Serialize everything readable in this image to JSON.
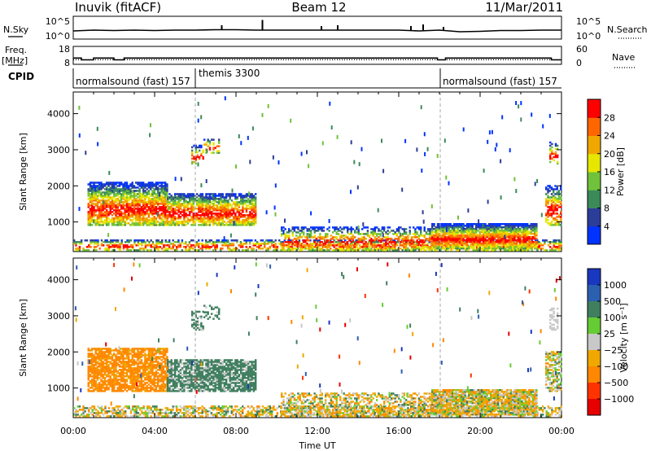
{
  "header": {
    "station": "Inuvik (fitACF)",
    "beam": "Beam 12",
    "date": "11/Mar/2011"
  },
  "chart_data": [
    {
      "type": "line",
      "name": "noise-panel",
      "left_label": "N.Sky",
      "right_label": "N.Search",
      "left_ticks": [
        "10^5",
        "10^0"
      ],
      "right_ticks": [
        "10^5",
        "10^0"
      ],
      "ylim": [
        0,
        5
      ],
      "x": [
        0,
        1,
        2,
        3,
        4,
        5,
        6,
        7,
        8,
        9,
        10,
        11,
        12,
        13,
        14,
        15,
        16,
        17,
        18,
        19,
        20,
        21,
        22,
        23,
        24
      ],
      "series": [
        {
          "values": [
            1.8,
            2.0,
            1.9,
            2.0,
            1.9,
            2.0,
            2.0,
            2.1,
            2.1,
            2.0,
            2.0,
            2.0,
            2.0,
            2.0,
            2.0,
            2.0,
            2.0,
            1.8,
            2.0,
            1.6,
            1.7,
            1.9,
            1.9,
            2.0,
            2.0
          ]
        }
      ],
      "spikes": [
        [
          7.3,
          3.2
        ],
        [
          9.3,
          4.5
        ],
        [
          12.2,
          3.0
        ],
        [
          13.0,
          3.2
        ],
        [
          16.6,
          3.0
        ],
        [
          17.2,
          3.4
        ],
        [
          18.2,
          2.8
        ]
      ]
    },
    {
      "type": "line",
      "name": "frequency-panel",
      "left_label": "Freq.",
      "left_unit": "[MHz]",
      "right_label": "Nave",
      "left_ticks": [
        "18",
        "8"
      ],
      "right_ticks": [
        "60",
        "0"
      ],
      "freq_step_x": [
        0,
        0.4,
        0.4,
        1.0,
        1.0,
        2.0,
        2.0,
        2.5,
        2.5,
        6.0,
        6.0,
        17.9,
        17.9,
        18.3,
        18.3,
        23.5,
        23.5,
        24
      ],
      "freq_step_y": [
        11.5,
        11.5,
        10.5,
        10.5,
        11.5,
        11.5,
        10.5,
        10.5,
        11.5,
        11.5,
        11.5,
        11.5,
        10.5,
        10.5,
        11.5,
        11.5,
        10.5,
        10.5
      ],
      "nave_x": [
        0,
        24
      ],
      "nave_y": [
        8,
        8
      ],
      "ylim": [
        8,
        18
      ]
    },
    {
      "type": "table",
      "name": "cpid-strip",
      "label": "CPID",
      "segments": [
        {
          "start": 0,
          "end": 6,
          "text": "normalsound (fast) 157"
        },
        {
          "start": 6,
          "end": 18,
          "text": "themis 3300"
        },
        {
          "start": 18,
          "end": 24,
          "text": "normalsound (fast) 157"
        }
      ]
    },
    {
      "type": "heatmap",
      "name": "power-panel",
      "ylabel": "Slant Range [km]",
      "colorbar_label": "Power [dB]",
      "colorbar_ticks": [
        "4",
        "8",
        "12",
        "16",
        "20",
        "24",
        "28"
      ],
      "colorbar_colors": [
        "#0033ff",
        "#2c3d99",
        "#3b8a5a",
        "#70c23a",
        "#e6e600",
        "#f0a800",
        "#ff6600",
        "#ff0000"
      ],
      "yticks": [
        "1000",
        "2000",
        "3000",
        "4000"
      ],
      "ylim": [
        180,
        4600
      ],
      "xlim": [
        0,
        24
      ]
    },
    {
      "type": "heatmap",
      "name": "velocity-panel",
      "ylabel": "Slant Range [km]",
      "colorbar_label": "Velocity [m s⁻¹]",
      "colorbar_ticks": [
        "1000",
        "500",
        "100",
        "25",
        "−25",
        "−100",
        "−500",
        "−1000"
      ],
      "colorbar_colors": [
        "#1a37c0",
        "#2b5fb0",
        "#3f7f5f",
        "#66cc33",
        "#c8c8c8",
        "#f0a800",
        "#ff8800",
        "#ff3300",
        "#e60000"
      ],
      "yticks": [
        "1000",
        "2000",
        "3000",
        "4000"
      ],
      "ylim": [
        180,
        4600
      ],
      "xlim": [
        0,
        24
      ],
      "xticks": [
        "00:00",
        "04:00",
        "08:00",
        "12:00",
        "16:00",
        "20:00",
        "00:00"
      ],
      "xlabel": "Time UT"
    }
  ]
}
